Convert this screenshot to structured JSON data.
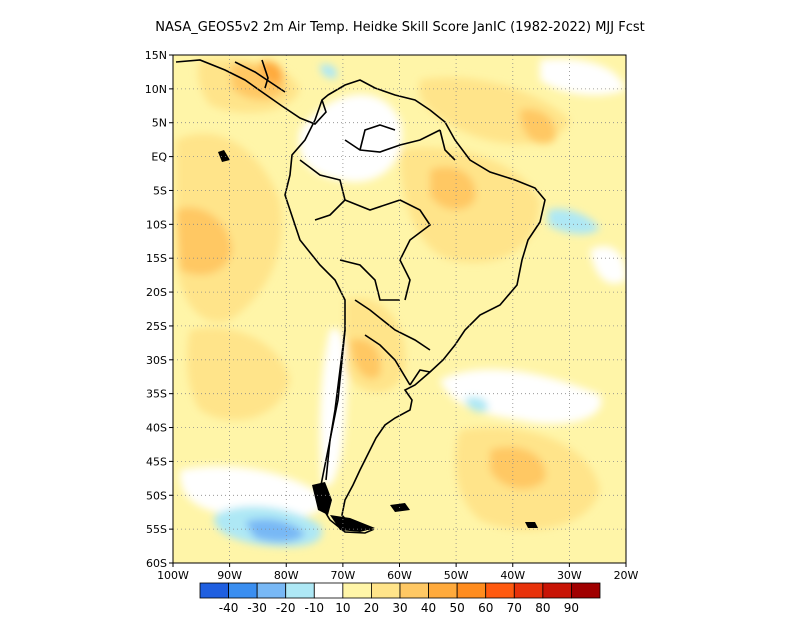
{
  "title": "NASA_GEOS5v2  2m Air Temp. Heidke Skill Score JanIC (1982-2022) MJJ Fcst",
  "map": {
    "lat_labels": [
      "15N",
      "10N",
      "5N",
      "EQ",
      "5S",
      "10S",
      "15S",
      "20S",
      "25S",
      "30S",
      "35S",
      "40S",
      "45S",
      "50S",
      "55S",
      "60S"
    ],
    "lon_labels": [
      "100W",
      "90W",
      "80W",
      "70W",
      "60W",
      "50W",
      "40W",
      "30W",
      "20W"
    ],
    "gridlines": "dotted"
  },
  "colorbar": {
    "colors": [
      "#1f5fe0",
      "#3a8ef0",
      "#78b8f5",
      "#aee8f5",
      "#ffffff",
      "#fff5a8",
      "#ffe48a",
      "#ffc864",
      "#ffaa3c",
      "#ff8c1e",
      "#ff5a0f",
      "#e8320a",
      "#c81405",
      "#a00000"
    ],
    "labels": [
      "-40",
      "-30",
      "-20",
      "-10",
      "10",
      "20",
      "30",
      "40",
      "50",
      "60",
      "70",
      "80",
      "90"
    ]
  }
}
